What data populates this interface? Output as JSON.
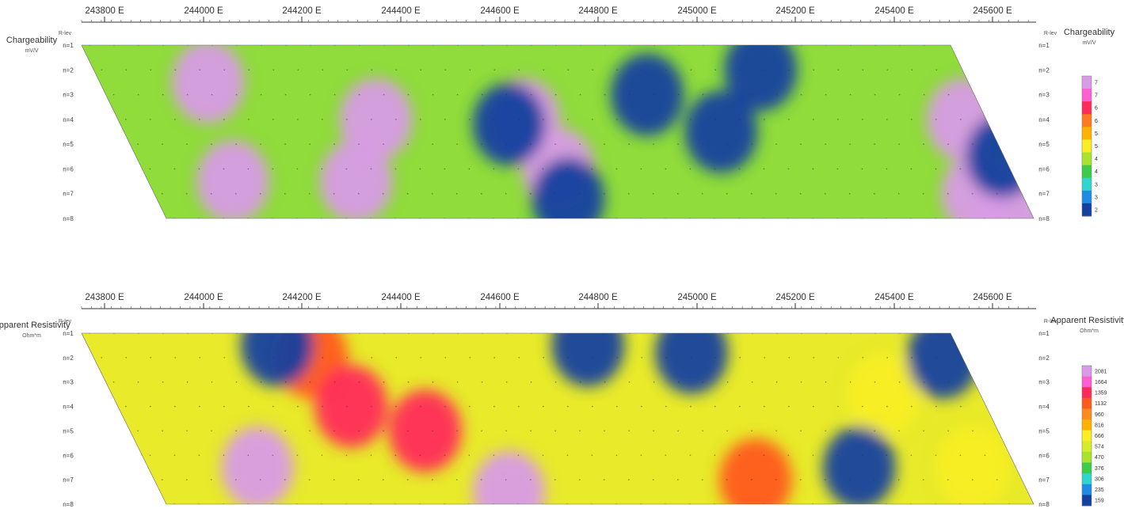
{
  "chart_data": [
    {
      "type": "heatmap",
      "title": "Chargeability",
      "unit": "mV/V",
      "x_tick_labels": [
        "243800 E",
        "244000 E",
        "244200 E",
        "244400 E",
        "244600 E",
        "244800 E",
        "245000 E",
        "245200 E",
        "245400 E",
        "245600 E"
      ],
      "xlim": [
        243700,
        245700
      ],
      "depth_header": "R-lev",
      "levels": [
        "n=1",
        "n=2",
        "n=3",
        "n=4",
        "n=5",
        "n=6",
        "n=7",
        "n=8"
      ],
      "colorbar": {
        "labels": [
          "7",
          "7",
          "6",
          "6",
          "5",
          "5",
          "4",
          "4",
          "3",
          "3",
          "2"
        ],
        "colors": [
          "#d89be6",
          "#ff5fd0",
          "#ff2a5a",
          "#ff7a1e",
          "#ffb300",
          "#f8ee22",
          "#a9e32f",
          "#3ecb4a",
          "#2fd6d0",
          "#1f8ce3",
          "#14409e"
        ]
      },
      "anomalies": [
        {
          "x": 244010,
          "level": 2.5,
          "value": 7
        },
        {
          "x": 244060,
          "level": 6.5,
          "value": 7
        },
        {
          "x": 244350,
          "level": 4.0,
          "value": 7
        },
        {
          "x": 244310,
          "level": 6.5,
          "value": 8
        },
        {
          "x": 244650,
          "level": 4.0,
          "value": 10
        },
        {
          "x": 244720,
          "level": 6.0,
          "value": 11
        },
        {
          "x": 245540,
          "level": 4.0,
          "value": 10
        },
        {
          "x": 245570,
          "level": 7.0,
          "value": 9
        },
        {
          "x": 245640,
          "level": 8.0,
          "value": 10
        },
        {
          "x": 244620,
          "level": 4.2,
          "value": 2
        },
        {
          "x": 244740,
          "level": 7.2,
          "value": 2
        },
        {
          "x": 244900,
          "level": 3.0,
          "value": 2
        },
        {
          "x": 245050,
          "level": 4.5,
          "value": 2
        },
        {
          "x": 245130,
          "level": 2.0,
          "value": 2
        },
        {
          "x": 245620,
          "level": 5.5,
          "value": 2
        }
      ]
    },
    {
      "type": "heatmap",
      "title": "Apparent Resistivity",
      "unit": "Ohm*m",
      "x_tick_labels": [
        "243800 E",
        "244000 E",
        "244200 E",
        "244400 E",
        "244600 E",
        "244800 E",
        "245000 E",
        "245200 E",
        "245400 E",
        "245600 E"
      ],
      "xlim": [
        243700,
        245700
      ],
      "depth_header": "R-lev",
      "levels": [
        "n=1",
        "n=2",
        "n=3",
        "n=4",
        "n=5",
        "n=6",
        "n=7",
        "n=8"
      ],
      "colorbar": {
        "labels": [
          "2081",
          "1664",
          "1359",
          "1132",
          "960",
          "816",
          "666",
          "574",
          "470",
          "376",
          "306",
          "235",
          "159"
        ],
        "colors": [
          "#d89be6",
          "#ff5fd0",
          "#ff2a5a",
          "#ff5a1e",
          "#ff8a1e",
          "#ffb300",
          "#f8ee22",
          "#d4ec2a",
          "#a9e32f",
          "#3ecb4a",
          "#2fd6d0",
          "#1f8ce3",
          "#14409e"
        ]
      },
      "anomalies": [
        {
          "x": 244110,
          "level": 6.5,
          "value": 2081
        },
        {
          "x": 244220,
          "level": 2.0,
          "value": 1664
        },
        {
          "x": 244300,
          "level": 4.0,
          "value": 1800
        },
        {
          "x": 244450,
          "level": 5.0,
          "value": 1700
        },
        {
          "x": 244620,
          "level": 7.5,
          "value": 2081
        },
        {
          "x": 245120,
          "level": 7.0,
          "value": 1664
        },
        {
          "x": 245380,
          "level": 3.5,
          "value": 1132
        },
        {
          "x": 245560,
          "level": 6.5,
          "value": 1132
        },
        {
          "x": 244150,
          "level": 1.5,
          "value": 159
        },
        {
          "x": 244780,
          "level": 1.5,
          "value": 159
        },
        {
          "x": 244990,
          "level": 1.8,
          "value": 159
        },
        {
          "x": 245330,
          "level": 6.5,
          "value": 159
        },
        {
          "x": 245500,
          "level": 2.0,
          "value": 159
        }
      ]
    }
  ]
}
